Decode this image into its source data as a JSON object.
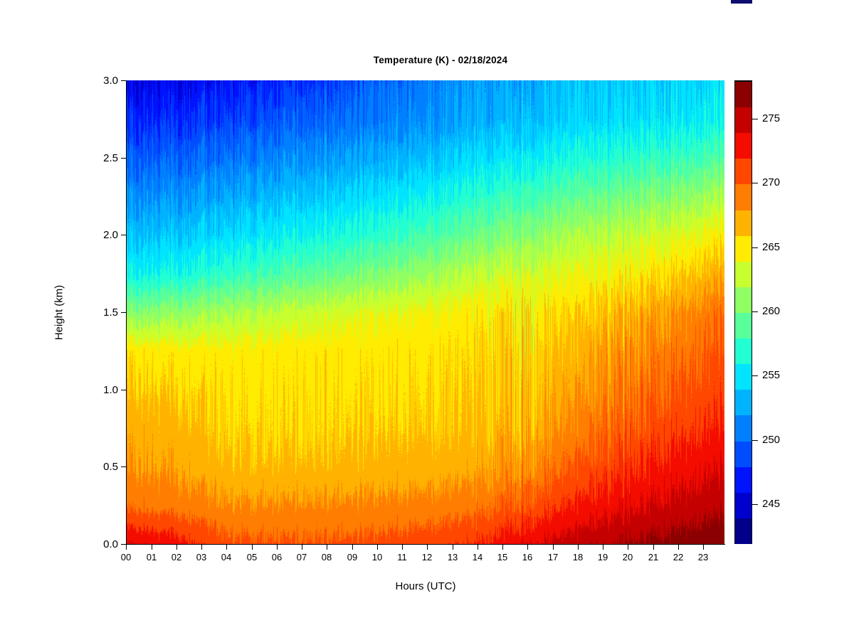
{
  "title": "Temperature (K) - 02/18/2024",
  "axes": {
    "x": {
      "label": "Hours (UTC)",
      "tick_labels": [
        "00",
        "01",
        "02",
        "03",
        "04",
        "05",
        "06",
        "07",
        "08",
        "09",
        "10",
        "11",
        "12",
        "13",
        "14",
        "15",
        "16",
        "17",
        "18",
        "19",
        "20",
        "21",
        "22",
        "23"
      ]
    },
    "y": {
      "label": "Height (km)",
      "tick_labels": [
        "0.0",
        "0.5",
        "1.0",
        "1.5",
        "2.0",
        "2.5",
        "3.0"
      ],
      "tick_values": [
        0.0,
        0.5,
        1.0,
        1.5,
        2.0,
        2.5,
        3.0
      ]
    }
  },
  "colorbar": {
    "tick_labels": [
      "245",
      "250",
      "255",
      "260",
      "265",
      "270",
      "275"
    ],
    "tick_values": [
      245,
      250,
      255,
      260,
      265,
      270,
      275
    ],
    "level_min": 242,
    "level_max": 278,
    "level_step": 2,
    "colors_low_to_high": [
      "#000089",
      "#0000CE",
      "#0013FF",
      "#004DFF",
      "#0080FF",
      "#00B3FF",
      "#00E4FF",
      "#22FFD2",
      "#59FF9B",
      "#90FF64",
      "#C8FF2E",
      "#FFEC00",
      "#FFB300",
      "#FF7D00",
      "#FF4700",
      "#F40C00",
      "#C40000",
      "#8B0000"
    ]
  },
  "chart_data": {
    "type": "heatmap",
    "title": "Temperature (K) - 02/18/2024",
    "xlabel": "Hours (UTC)",
    "ylabel": "Height (km)",
    "units": "K",
    "xlim": [
      0,
      24
    ],
    "ylim": [
      0,
      3
    ],
    "legend_position": "right",
    "grid": false,
    "levels": {
      "min": 242,
      "max": 278,
      "step": 2
    },
    "palette_low_to_high": [
      "#000089",
      "#0000CE",
      "#0013FF",
      "#004DFF",
      "#0080FF",
      "#00B3FF",
      "#00E4FF",
      "#22FFD2",
      "#59FF9B",
      "#90FF64",
      "#C8FF2E",
      "#FFEC00",
      "#FFB300",
      "#FF7D00",
      "#FF4700",
      "#F40C00",
      "#C40000",
      "#8B0000"
    ],
    "x_hours": [
      0,
      2,
      4,
      6,
      8,
      10,
      12,
      14,
      16,
      18,
      20,
      22,
      24
    ],
    "heights_km": [
      0.0,
      0.25,
      0.5,
      0.75,
      1.0,
      1.25,
      1.5,
      1.75,
      2.0,
      2.25,
      2.5,
      2.75,
      3.0
    ],
    "temperature_grid_K": [
      [
        274.0,
        273.0,
        270.6,
        270.3,
        270.3,
        270.6,
        271.2,
        272.0,
        273.7,
        275.0,
        276.0,
        276.9,
        277.6
      ],
      [
        269.5,
        269.2,
        268.3,
        268.2,
        268.3,
        268.5,
        268.8,
        269.2,
        270.6,
        272.2,
        273.5,
        274.6,
        275.4
      ],
      [
        268.0,
        267.8,
        266.6,
        266.4,
        266.5,
        266.8,
        267.0,
        267.3,
        268.3,
        270.2,
        271.6,
        272.9,
        273.8
      ],
      [
        267.2,
        267.0,
        265.9,
        265.7,
        265.8,
        266.0,
        266.2,
        266.4,
        267.1,
        268.6,
        270.1,
        271.4,
        272.3
      ],
      [
        266.2,
        266.0,
        265.5,
        265.4,
        265.5,
        265.6,
        265.8,
        266.0,
        266.4,
        267.5,
        269.0,
        270.2,
        271.2
      ],
      [
        265.2,
        265.1,
        265.0,
        265.0,
        265.1,
        265.2,
        265.4,
        265.6,
        265.9,
        266.7,
        268.1,
        269.3,
        270.4
      ],
      [
        260.5,
        261.2,
        261.9,
        262.5,
        263.2,
        263.9,
        264.5,
        264.9,
        265.2,
        265.6,
        266.8,
        268.0,
        269.5
      ],
      [
        255.8,
        256.5,
        257.5,
        258.4,
        259.3,
        260.3,
        261.4,
        262.6,
        263.4,
        263.9,
        264.6,
        265.8,
        267.2
      ],
      [
        253.5,
        254.0,
        254.8,
        255.5,
        256.3,
        257.2,
        258.4,
        259.6,
        260.8,
        261.8,
        262.6,
        263.6,
        264.8
      ],
      [
        251.5,
        252.0,
        252.7,
        253.3,
        254.0,
        254.9,
        255.9,
        257.0,
        258.1,
        259.0,
        259.8,
        260.7,
        261.8
      ],
      [
        249.5,
        250.0,
        250.6,
        251.2,
        251.9,
        252.7,
        253.6,
        254.6,
        255.5,
        256.3,
        257.0,
        257.7,
        258.5
      ],
      [
        247.5,
        248.0,
        248.6,
        249.2,
        249.9,
        250.7,
        251.7,
        252.6,
        253.4,
        254.1,
        254.7,
        255.2,
        255.8
      ],
      [
        245.8,
        246.3,
        246.9,
        247.5,
        248.3,
        249.8,
        251.0,
        252.0,
        252.8,
        253.4,
        253.9,
        254.3,
        254.7
      ]
    ],
    "noise": {
      "style": "per-column vertical striping of contour boundaries",
      "base_amplitude_K": 0.5,
      "top_amplitude_K": 1.55,
      "events": [
        {
          "center_hour": 15.7,
          "center_height_km": 0.9,
          "amplitude_factor": 2.6
        },
        {
          "center_hour": 19.8,
          "center_height_km": 1.0,
          "amplitude_factor": 1.7
        }
      ]
    }
  },
  "artifact": {
    "color": "#0D0D70"
  }
}
